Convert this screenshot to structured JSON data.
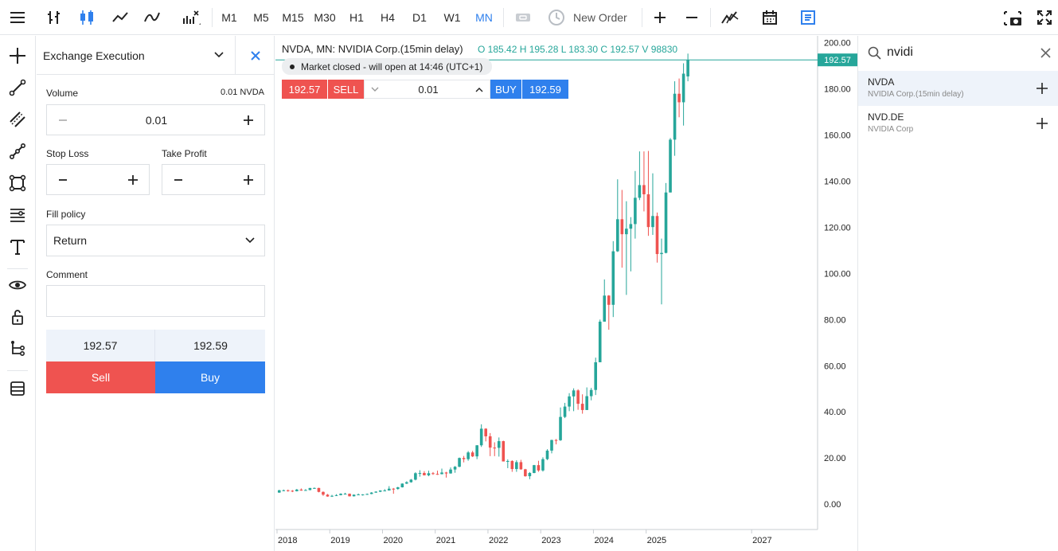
{
  "toolbar": {
    "timeframes": [
      "M1",
      "M5",
      "M15",
      "M30",
      "H1",
      "H4",
      "D1",
      "W1",
      "MN"
    ],
    "active_timeframe": "MN",
    "new_order_label": "New Order"
  },
  "order_panel": {
    "title": "Exchange Execution",
    "volume_label": "Volume",
    "volume_hint": "0.01 NVDA",
    "volume_value": "0.01",
    "stop_loss_label": "Stop Loss",
    "take_profit_label": "Take Profit",
    "fill_policy_label": "Fill policy",
    "fill_policy_value": "Return",
    "comment_label": "Comment",
    "comment_value": "",
    "bid": "192.57",
    "ask": "192.59",
    "sell_label": "Sell",
    "buy_label": "Buy"
  },
  "chart_header": {
    "symbol_line": "NVDA, MN: NVIDIA Corp.(15min delay)",
    "ohlc": "O 185.42 H 195.28 L 183.30 C 192.57 V 98830",
    "market_status": "Market closed - will open at 14:46 (UTC+1)",
    "sell_price": "192.57",
    "sell_label": "SELL",
    "quick_volume": "0.01",
    "buy_label": "BUY",
    "buy_price": "192.59",
    "last_price_tag": "192.57"
  },
  "colors": {
    "up": "#26a69a",
    "down": "#ef5350",
    "accent": "#2f80ed",
    "sell": "#ef5350",
    "buy": "#2f80ed"
  },
  "chart_data": {
    "type": "candlestick",
    "y_ticks": [
      "200.00",
      "180.00",
      "160.00",
      "140.00",
      "120.00",
      "100.00",
      "80.00",
      "60.00",
      "40.00",
      "20.00",
      "0.00"
    ],
    "x_ticks": [
      "2018",
      "2019",
      "2020",
      "2021",
      "2022",
      "2023",
      "2024",
      "2025",
      "2027"
    ],
    "ylim": [
      -11,
      203
    ],
    "last_price": 192.57,
    "candles": [
      {
        "t": "2018-01",
        "o": 5.0,
        "h": 6.2,
        "l": 4.9,
        "c": 6.0
      },
      {
        "t": "2018-02",
        "o": 6.0,
        "h": 6.3,
        "l": 5.6,
        "c": 6.0
      },
      {
        "t": "2018-03",
        "o": 6.0,
        "h": 6.3,
        "l": 5.4,
        "c": 5.8
      },
      {
        "t": "2018-04",
        "o": 5.8,
        "h": 6.1,
        "l": 5.2,
        "c": 5.6
      },
      {
        "t": "2018-05",
        "o": 5.6,
        "h": 6.6,
        "l": 5.5,
        "c": 6.3
      },
      {
        "t": "2018-06",
        "o": 6.3,
        "h": 6.8,
        "l": 5.8,
        "c": 5.9
      },
      {
        "t": "2018-07",
        "o": 5.9,
        "h": 6.5,
        "l": 5.9,
        "c": 6.1
      },
      {
        "t": "2018-08",
        "o": 6.1,
        "h": 7.0,
        "l": 6.0,
        "c": 7.0
      },
      {
        "t": "2018-09",
        "o": 7.0,
        "h": 7.2,
        "l": 6.6,
        "c": 7.0
      },
      {
        "t": "2018-10",
        "o": 7.0,
        "h": 7.1,
        "l": 5.1,
        "c": 5.3
      },
      {
        "t": "2018-11",
        "o": 5.3,
        "h": 5.5,
        "l": 3.6,
        "c": 4.1
      },
      {
        "t": "2018-12",
        "o": 4.1,
        "h": 4.4,
        "l": 3.2,
        "c": 3.3
      },
      {
        "t": "2019-01",
        "o": 3.3,
        "h": 4.0,
        "l": 3.1,
        "c": 3.6
      },
      {
        "t": "2019-02",
        "o": 3.6,
        "h": 4.3,
        "l": 3.5,
        "c": 3.9
      },
      {
        "t": "2019-03",
        "o": 3.9,
        "h": 4.7,
        "l": 3.8,
        "c": 4.5
      },
      {
        "t": "2019-04",
        "o": 4.5,
        "h": 4.9,
        "l": 4.3,
        "c": 4.5
      },
      {
        "t": "2019-05",
        "o": 4.5,
        "h": 4.6,
        "l": 3.3,
        "c": 3.4
      },
      {
        "t": "2019-06",
        "o": 3.4,
        "h": 4.2,
        "l": 3.3,
        "c": 4.1
      },
      {
        "t": "2019-07",
        "o": 4.1,
        "h": 4.6,
        "l": 4.0,
        "c": 4.2
      },
      {
        "t": "2019-08",
        "o": 4.2,
        "h": 4.3,
        "l": 3.7,
        "c": 4.2
      },
      {
        "t": "2019-09",
        "o": 4.2,
        "h": 4.6,
        "l": 4.0,
        "c": 4.4
      },
      {
        "t": "2019-10",
        "o": 4.4,
        "h": 5.2,
        "l": 4.3,
        "c": 5.0
      },
      {
        "t": "2019-11",
        "o": 5.0,
        "h": 5.6,
        "l": 4.9,
        "c": 5.4
      },
      {
        "t": "2019-12",
        "o": 5.4,
        "h": 6.0,
        "l": 5.2,
        "c": 5.9
      },
      {
        "t": "2020-01",
        "o": 5.9,
        "h": 6.5,
        "l": 5.6,
        "c": 5.9
      },
      {
        "t": "2020-02",
        "o": 5.9,
        "h": 7.8,
        "l": 5.9,
        "c": 6.7
      },
      {
        "t": "2020-03",
        "o": 6.7,
        "h": 7.0,
        "l": 4.5,
        "c": 6.6
      },
      {
        "t": "2020-04",
        "o": 6.6,
        "h": 7.5,
        "l": 6.2,
        "c": 7.3
      },
      {
        "t": "2020-05",
        "o": 7.3,
        "h": 9.0,
        "l": 7.2,
        "c": 8.9
      },
      {
        "t": "2020-06",
        "o": 8.9,
        "h": 9.9,
        "l": 8.7,
        "c": 9.5
      },
      {
        "t": "2020-07",
        "o": 9.5,
        "h": 10.9,
        "l": 9.3,
        "c": 10.6
      },
      {
        "t": "2020-08",
        "o": 10.6,
        "h": 13.8,
        "l": 10.3,
        "c": 13.4
      },
      {
        "t": "2020-09",
        "o": 13.4,
        "h": 14.7,
        "l": 11.9,
        "c": 13.5
      },
      {
        "t": "2020-10",
        "o": 13.5,
        "h": 14.3,
        "l": 12.4,
        "c": 12.5
      },
      {
        "t": "2020-11",
        "o": 12.5,
        "h": 14.5,
        "l": 12.1,
        "c": 13.4
      },
      {
        "t": "2020-12",
        "o": 13.4,
        "h": 13.9,
        "l": 12.7,
        "c": 13.1
      },
      {
        "t": "2021-01",
        "o": 13.1,
        "h": 14.5,
        "l": 12.7,
        "c": 13.0
      },
      {
        "t": "2021-02",
        "o": 13.0,
        "h": 15.4,
        "l": 12.9,
        "c": 13.7
      },
      {
        "t": "2021-03",
        "o": 13.7,
        "h": 14.0,
        "l": 11.5,
        "c": 13.3
      },
      {
        "t": "2021-04",
        "o": 13.3,
        "h": 15.9,
        "l": 13.2,
        "c": 15.0
      },
      {
        "t": "2021-05",
        "o": 15.0,
        "h": 16.5,
        "l": 13.6,
        "c": 16.2
      },
      {
        "t": "2021-06",
        "o": 16.2,
        "h": 20.2,
        "l": 16.0,
        "c": 20.0
      },
      {
        "t": "2021-07",
        "o": 20.0,
        "h": 20.9,
        "l": 18.1,
        "c": 19.5
      },
      {
        "t": "2021-08",
        "o": 19.5,
        "h": 23.0,
        "l": 18.8,
        "c": 22.4
      },
      {
        "t": "2021-09",
        "o": 22.4,
        "h": 23.1,
        "l": 20.4,
        "c": 20.7
      },
      {
        "t": "2021-10",
        "o": 20.7,
        "h": 25.6,
        "l": 19.5,
        "c": 25.5
      },
      {
        "t": "2021-11",
        "o": 25.5,
        "h": 34.6,
        "l": 24.8,
        "c": 32.7
      },
      {
        "t": "2021-12",
        "o": 32.7,
        "h": 32.9,
        "l": 27.2,
        "c": 29.4
      },
      {
        "t": "2022-01",
        "o": 29.4,
        "h": 30.8,
        "l": 20.8,
        "c": 24.5
      },
      {
        "t": "2022-02",
        "o": 24.5,
        "h": 26.8,
        "l": 20.8,
        "c": 24.4
      },
      {
        "t": "2022-03",
        "o": 24.4,
        "h": 28.9,
        "l": 20.6,
        "c": 27.3
      },
      {
        "t": "2022-04",
        "o": 27.3,
        "h": 27.5,
        "l": 18.5,
        "c": 18.5
      },
      {
        "t": "2022-05",
        "o": 18.5,
        "h": 19.4,
        "l": 15.6,
        "c": 18.7
      },
      {
        "t": "2022-06",
        "o": 18.7,
        "h": 19.0,
        "l": 14.0,
        "c": 15.2
      },
      {
        "t": "2022-07",
        "o": 15.2,
        "h": 19.0,
        "l": 14.0,
        "c": 18.2
      },
      {
        "t": "2022-08",
        "o": 18.2,
        "h": 19.2,
        "l": 14.9,
        "c": 15.1
      },
      {
        "t": "2022-09",
        "o": 15.1,
        "h": 15.3,
        "l": 11.9,
        "c": 12.1
      },
      {
        "t": "2022-10",
        "o": 12.1,
        "h": 13.9,
        "l": 10.8,
        "c": 13.5
      },
      {
        "t": "2022-11",
        "o": 13.5,
        "h": 17.0,
        "l": 13.4,
        "c": 16.9
      },
      {
        "t": "2022-12",
        "o": 16.9,
        "h": 18.8,
        "l": 14.0,
        "c": 14.6
      },
      {
        "t": "2023-01",
        "o": 14.6,
        "h": 20.3,
        "l": 14.1,
        "c": 19.5
      },
      {
        "t": "2023-02",
        "o": 19.5,
        "h": 23.8,
        "l": 19.1,
        "c": 23.2
      },
      {
        "t": "2023-03",
        "o": 23.2,
        "h": 27.9,
        "l": 22.0,
        "c": 27.8
      },
      {
        "t": "2023-04",
        "o": 27.8,
        "h": 28.2,
        "l": 25.9,
        "c": 27.7
      },
      {
        "t": "2023-05",
        "o": 27.7,
        "h": 41.9,
        "l": 27.4,
        "c": 37.8
      },
      {
        "t": "2023-06",
        "o": 37.8,
        "h": 43.9,
        "l": 37.3,
        "c": 42.3
      },
      {
        "t": "2023-07",
        "o": 42.3,
        "h": 48.1,
        "l": 40.3,
        "c": 46.7
      },
      {
        "t": "2023-08",
        "o": 46.7,
        "h": 50.2,
        "l": 40.3,
        "c": 49.3
      },
      {
        "t": "2023-09",
        "o": 49.3,
        "h": 49.8,
        "l": 40.9,
        "c": 43.5
      },
      {
        "t": "2023-10",
        "o": 43.5,
        "h": 47.6,
        "l": 39.2,
        "c": 40.8
      },
      {
        "t": "2023-11",
        "o": 40.8,
        "h": 50.6,
        "l": 40.8,
        "c": 46.8
      },
      {
        "t": "2023-12",
        "o": 46.8,
        "h": 50.4,
        "l": 45.0,
        "c": 49.5
      },
      {
        "t": "2024-01",
        "o": 49.5,
        "h": 63.5,
        "l": 47.3,
        "c": 61.5
      },
      {
        "t": "2024-02",
        "o": 61.5,
        "h": 80.0,
        "l": 61.6,
        "c": 79.1
      },
      {
        "t": "2024-03",
        "o": 79.1,
        "h": 97.4,
        "l": 79.3,
        "c": 90.4
      },
      {
        "t": "2024-04",
        "o": 90.4,
        "h": 90.6,
        "l": 75.6,
        "c": 86.4
      },
      {
        "t": "2024-05",
        "o": 86.4,
        "h": 114.0,
        "l": 81.1,
        "c": 109.6
      },
      {
        "t": "2024-06",
        "o": 109.6,
        "h": 140.8,
        "l": 109.3,
        "c": 123.5
      },
      {
        "t": "2024-07",
        "o": 123.5,
        "h": 136.2,
        "l": 102.5,
        "c": 117.0
      },
      {
        "t": "2024-08",
        "o": 117.0,
        "h": 131.3,
        "l": 90.7,
        "c": 119.4
      },
      {
        "t": "2024-09",
        "o": 119.4,
        "h": 124.4,
        "l": 100.9,
        "c": 121.4
      },
      {
        "t": "2024-10",
        "o": 121.4,
        "h": 144.4,
        "l": 115.1,
        "c": 132.8
      },
      {
        "t": "2024-11",
        "o": 132.8,
        "h": 152.9,
        "l": 131.8,
        "c": 138.3
      },
      {
        "t": "2024-12",
        "o": 138.3,
        "h": 152.9,
        "l": 126.9,
        "c": 134.3
      },
      {
        "t": "2025-01",
        "o": 134.3,
        "h": 153.1,
        "l": 116.3,
        "c": 120.1
      },
      {
        "t": "2025-02",
        "o": 120.1,
        "h": 143.4,
        "l": 116.7,
        "c": 124.9
      },
      {
        "t": "2025-03",
        "o": 124.9,
        "h": 126.4,
        "l": 104.7,
        "c": 108.4
      },
      {
        "t": "2025-04",
        "o": 108.4,
        "h": 115.1,
        "l": 86.6,
        "c": 108.9
      },
      {
        "t": "2025-05",
        "o": 108.9,
        "h": 139.2,
        "l": 108.7,
        "c": 135.1
      },
      {
        "t": "2025-06",
        "o": 135.1,
        "h": 158.7,
        "l": 135.1,
        "c": 158.0
      },
      {
        "t": "2025-07",
        "o": 158.0,
        "h": 183.3,
        "l": 151.0,
        "c": 177.9
      },
      {
        "t": "2025-08",
        "o": 177.9,
        "h": 184.5,
        "l": 167.7,
        "c": 174.2
      },
      {
        "t": "2025-09",
        "o": 174.2,
        "h": 191.1,
        "l": 164.1,
        "c": 186.6
      },
      {
        "t": "2025-10",
        "o": 185.4,
        "h": 195.3,
        "l": 183.3,
        "c": 192.6
      }
    ]
  },
  "symbol_search": {
    "query": "nvidi",
    "results": [
      {
        "symbol": "NVDA",
        "description": "NVIDIA Corp.(15min delay)"
      },
      {
        "symbol": "NVD.DE",
        "description": "NVIDIA Corp"
      }
    ]
  }
}
